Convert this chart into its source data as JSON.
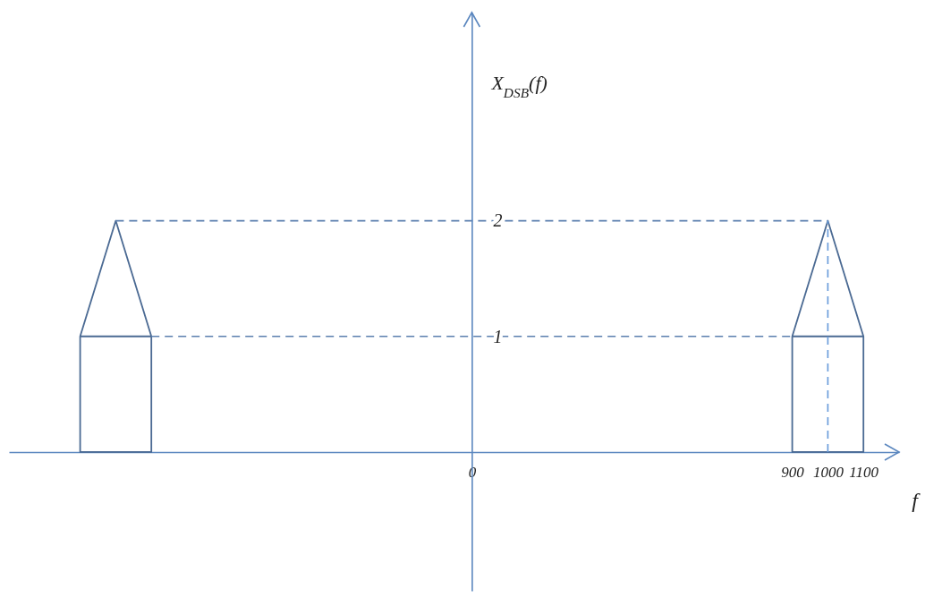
{
  "chart_data": {
    "type": "line",
    "xlabel": "f",
    "ylabel": "X$_{DSB}$(f)",
    "xlim": [
      -1300,
      1200
    ],
    "ylim": [
      -1.2,
      3.8
    ],
    "xticks": [
      0,
      900,
      1000,
      1100
    ],
    "yticks": [
      1,
      2
    ],
    "line_style": "solid",
    "series": [
      {
        "color": "#4b6a93",
        "x": [
          -1100,
          -1100,
          -900,
          -900,
          -1100,
          -1000,
          -900
        ],
        "values": [
          1,
          0,
          0,
          1,
          1,
          2,
          1
        ]
      },
      {
        "color": "#4b6a93",
        "x": [
          900,
          900,
          1100,
          1100,
          900,
          1000,
          1100
        ],
        "values": [
          1,
          0,
          0,
          1,
          1,
          2,
          1
        ]
      },
      {
        "color": "#5b7fae",
        "line_style": "dashed",
        "x": [
          -1000,
          1000
        ],
        "values": [
          2,
          2
        ]
      },
      {
        "color": "#5b7fae",
        "line_style": "dashed",
        "x": [
          -900,
          900
        ],
        "values": [
          1,
          1
        ]
      },
      {
        "color": "#6d9fdc",
        "line_style": "dashed",
        "x": [
          1000,
          1000
        ],
        "values": [
          0,
          2
        ]
      }
    ]
  }
}
